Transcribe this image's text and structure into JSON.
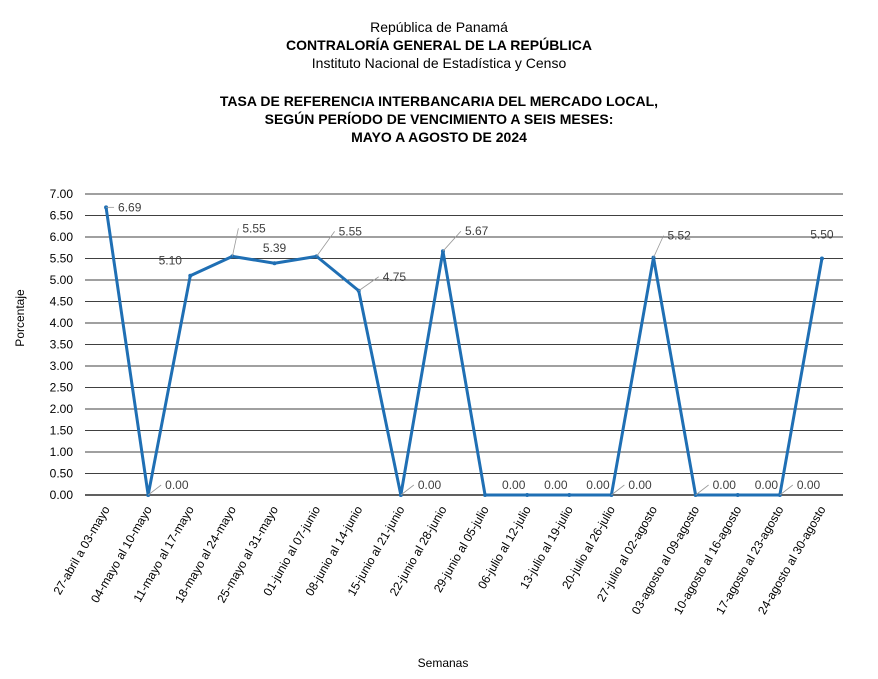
{
  "header": {
    "line1": "República de Panamá",
    "line2": "CONTRALORÍA GENERAL DE LA REPÚBLICA",
    "line3": "Instituto  Nacional de Estadística y Censo"
  },
  "chart_data": {
    "type": "line",
    "title": [
      "TASA DE REFERENCIA INTERBANCARIA DEL MERCADO LOCAL,",
      "SEGÚN PERÍODO DE VENCIMIENTO A SEIS MESES:",
      "MAYO A AGOSTO DE 2024"
    ],
    "xlabel": "Semanas",
    "ylabel": "Porcentaje",
    "ylim": [
      0,
      7
    ],
    "yticks": [
      "0.00",
      "0.50",
      "1.00",
      "1.50",
      "2.00",
      "2.50",
      "3.00",
      "3.50",
      "4.00",
      "4.50",
      "5.00",
      "5.50",
      "6.00",
      "6.50",
      "7.00"
    ],
    "grid": true,
    "line_color": "#1F6FB4",
    "categories": [
      "27-abril a 03-mayo",
      "04-mayo al 10-mayo",
      "11-mayo al 17-mayo",
      "18-mayo al 24-mayo",
      "25-mayo al 31-mayo",
      "01-junio al 07-junio",
      "08-junio al 14-junio",
      "15-junio al 21-junio",
      "22-junio al 28-junio",
      "29-junio al 05-julio",
      "06-julio al 12-julio",
      "13-julio al 19-julio",
      "20-julio al 26-julio",
      "27-julio al 02-agosto",
      "03-agosto al 09-agosto",
      "10-agosto al 16-agosto",
      "17-agosto al 23-agosto",
      "24-agosto al 30-agosto"
    ],
    "values": [
      6.69,
      0.0,
      5.1,
      5.55,
      5.39,
      5.55,
      4.75,
      0.0,
      5.67,
      0.0,
      0.0,
      0.0,
      0.0,
      5.52,
      0.0,
      0.0,
      0.0,
      5.5
    ],
    "data_labels": [
      "6.69",
      "0.00",
      "5.10",
      "5.55",
      "5.39",
      "5.55",
      "4.75",
      "0.00",
      "5.67",
      "0.00",
      "0.00",
      "0.00",
      "0.00",
      "5.52",
      "0.00",
      "0.00",
      "0.00",
      "5.50"
    ]
  }
}
